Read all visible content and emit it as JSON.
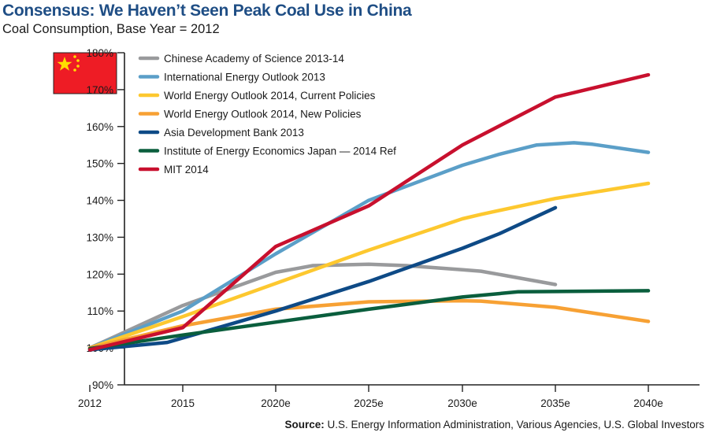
{
  "header": {
    "title": "Consensus: We Haven’t Seen Peak Coal Use in China",
    "subtitle": "Coal Consumption, Base Year = 2012"
  },
  "footer": {
    "source_label": "Source:",
    "source_text": " U.S. Energy Information Administration, Various Agencies, U.S. Global Investors"
  },
  "flag": {
    "icon": "china-flag-icon",
    "colors": {
      "field": "#ee1c25",
      "stars": "#ffde00"
    }
  },
  "chart_data": {
    "type": "line",
    "title": "Consensus: We Haven’t Seen Peak Coal Use in China",
    "subtitle": "Coal Consumption, Base Year = 2012",
    "xlabel": "",
    "ylabel": "",
    "x_ticks": [
      2012,
      2015,
      2020,
      2025,
      2030,
      2035,
      2040
    ],
    "x_tick_labels": [
      "2012",
      "2015",
      "2020e",
      "2025e",
      "2030e",
      "2035e",
      "2040e"
    ],
    "y_ticks": [
      90,
      100,
      110,
      120,
      130,
      140,
      150,
      160,
      170,
      180
    ],
    "y_tick_labels": [
      "90%",
      "100%",
      "110%",
      "120%",
      "130%",
      "140%",
      "150%",
      "160%",
      "170%",
      "180%"
    ],
    "ylim": [
      90,
      180
    ],
    "xlim": [
      2012,
      2040
    ],
    "x_axis_note": "tick positions evenly spaced (2012, 2015, then 5-year steps)",
    "grid": false,
    "legend_position": "top-left",
    "series": [
      {
        "name": "Chinese Academy of Science 2013-14",
        "color": "#999a9c",
        "points": [
          [
            2012,
            100
          ],
          [
            2015,
            111.5
          ],
          [
            2020,
            120.5
          ],
          [
            2022,
            122.3
          ],
          [
            2025,
            122.7
          ],
          [
            2027,
            122.3
          ],
          [
            2030,
            121.2
          ],
          [
            2031,
            120.8
          ],
          [
            2035,
            117.2
          ]
        ]
      },
      {
        "name": "International Energy Outlook 2013",
        "color": "#5b9fc8",
        "points": [
          [
            2012,
            100
          ],
          [
            2015,
            110
          ],
          [
            2020,
            125.5
          ],
          [
            2025,
            140
          ],
          [
            2030,
            149.5
          ],
          [
            2032,
            152.5
          ],
          [
            2034,
            155
          ],
          [
            2036,
            155.6
          ],
          [
            2037,
            155.2
          ],
          [
            2040,
            153
          ]
        ]
      },
      {
        "name": "World Energy Outlook 2014, Current Policies",
        "color": "#fdc82f",
        "points": [
          [
            2012,
            100
          ],
          [
            2015,
            108.5
          ],
          [
            2020,
            117.5
          ],
          [
            2025,
            126.5
          ],
          [
            2030,
            135
          ],
          [
            2031,
            136.2
          ],
          [
            2035,
            140.5
          ],
          [
            2040,
            144.6
          ]
        ]
      },
      {
        "name": "World Energy Outlook 2014, New Policies",
        "color": "#f7a134",
        "points": [
          [
            2012,
            100
          ],
          [
            2015,
            106
          ],
          [
            2020,
            110.5
          ],
          [
            2025,
            112.5
          ],
          [
            2030,
            112.8
          ],
          [
            2031,
            112.7
          ],
          [
            2035,
            111
          ],
          [
            2040,
            107.2
          ]
        ]
      },
      {
        "name": "Asia Development Bank 2013",
        "color": "#0e4a86",
        "points": [
          [
            2012,
            99.5
          ],
          [
            2014.5,
            101.5
          ],
          [
            2020,
            110
          ],
          [
            2025,
            118
          ],
          [
            2030,
            127
          ],
          [
            2032,
            131
          ],
          [
            2035,
            138
          ]
        ]
      },
      {
        "name": "Institute of Energy Economics Japan — 2014 Ref",
        "color": "#0a5e3d",
        "points": [
          [
            2012,
            99.8
          ],
          [
            2015,
            103.5
          ],
          [
            2020,
            107
          ],
          [
            2025,
            110.5
          ],
          [
            2030,
            113.8
          ],
          [
            2033,
            115.2
          ],
          [
            2035,
            115.3
          ],
          [
            2040,
            115.5
          ]
        ]
      },
      {
        "name": "MIT 2014",
        "color": "#c8102e",
        "points": [
          [
            2012,
            99.5
          ],
          [
            2015,
            105.5
          ],
          [
            2020,
            127.5
          ],
          [
            2025,
            138.5
          ],
          [
            2030,
            155
          ],
          [
            2035,
            168
          ],
          [
            2040,
            174
          ]
        ]
      }
    ]
  }
}
